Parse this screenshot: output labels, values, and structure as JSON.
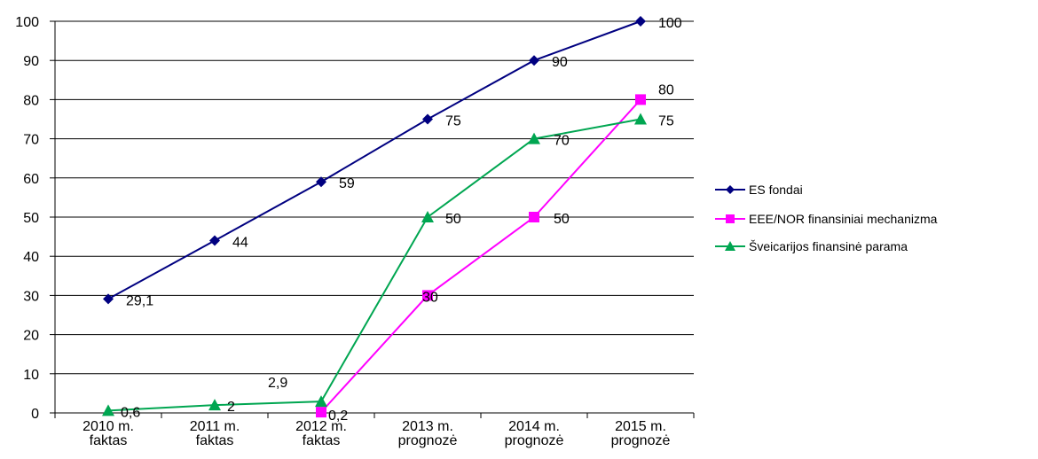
{
  "chart_data": {
    "type": "line",
    "categories": [
      [
        "2010 m.",
        "faktas"
      ],
      [
        "2011 m.",
        "faktas"
      ],
      [
        "2012 m.",
        "faktas"
      ],
      [
        "2013 m.",
        "prognozė"
      ],
      [
        "2014 m.",
        "prognozė"
      ],
      [
        "2015 m.",
        "prognozė"
      ]
    ],
    "ylim": [
      0,
      100
    ],
    "yticks": [
      0,
      10,
      20,
      30,
      40,
      50,
      60,
      70,
      80,
      90,
      100
    ],
    "ytick_labels": [
      "0",
      "10",
      "20",
      "30",
      "40",
      "50",
      "60",
      "70",
      "80",
      "90",
      "100"
    ],
    "grid": true,
    "legend_position": "right",
    "series": [
      {
        "name": "ES fondai",
        "color": "#000080",
        "marker": "diamond",
        "values": [
          29.1,
          44,
          59,
          75,
          90,
          100
        ],
        "labels": [
          "29,1",
          "44",
          "59",
          "75",
          "90",
          "100"
        ]
      },
      {
        "name": "EEE/NOR finansiniai mechanizma",
        "color": "#ff00ff",
        "marker": "square",
        "values": [
          null,
          null,
          0.2,
          30,
          50,
          80
        ],
        "labels": [
          null,
          null,
          "0,2",
          "30",
          "50",
          "80"
        ]
      },
      {
        "name": "Šveicarijos finansinė parama",
        "color": "#00a651",
        "marker": "triangle",
        "values": [
          0.6,
          2,
          2.9,
          50,
          70,
          75
        ],
        "labels": [
          "0,6",
          "2",
          "2,9",
          "50",
          "70",
          "75"
        ]
      }
    ]
  }
}
